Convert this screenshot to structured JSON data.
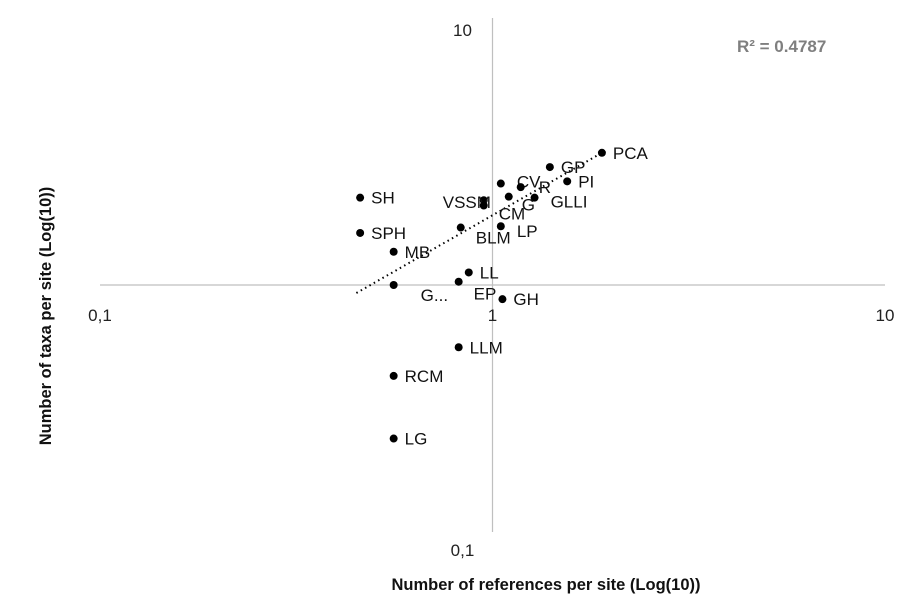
{
  "chart_data": {
    "type": "scatter",
    "title": "",
    "xlabel": "Number of references per site (Log(10))",
    "ylabel": "Number of taxa per site (Log(10))",
    "x_scale": "log",
    "y_scale": "log",
    "xlim": [
      0.1,
      10
    ],
    "ylim": [
      0.1,
      10
    ],
    "x_ticks": [
      "0,1",
      "1",
      "10"
    ],
    "y_ticks": [
      "10",
      "0,1"
    ],
    "grid": false,
    "trendline": {
      "style": "dotted",
      "x_range": [
        0.45,
        1.9
      ],
      "y_range": [
        0.93,
        3.3
      ]
    },
    "r_squared_label": "R² = 0.4787",
    "points": [
      {
        "label": "PCA",
        "x": 1.9,
        "y": 3.3
      },
      {
        "label": "GP",
        "x": 1.4,
        "y": 2.9
      },
      {
        "label": "PI",
        "x": 1.55,
        "y": 2.55
      },
      {
        "label": "CV",
        "x": 1.05,
        "y": 2.5
      },
      {
        "label": "R",
        "x": 1.18,
        "y": 2.42
      },
      {
        "label": "GLLI",
        "x": 1.28,
        "y": 2.2
      },
      {
        "label": "G",
        "x": 1.1,
        "y": 2.22
      },
      {
        "label": "VSSM",
        "x": 0.95,
        "y": 2.15
      },
      {
        "label": "CM",
        "x": 0.95,
        "y": 2.05
      },
      {
        "label": "SH",
        "x": 0.46,
        "y": 2.2
      },
      {
        "label": "LP",
        "x": 1.05,
        "y": 1.7
      },
      {
        "label": "BLM",
        "x": 0.83,
        "y": 1.68
      },
      {
        "label": "SPH",
        "x": 0.46,
        "y": 1.6
      },
      {
        "label": "MB",
        "x": 0.56,
        "y": 1.35
      },
      {
        "label": "LL",
        "x": 0.87,
        "y": 1.12
      },
      {
        "label": "EP",
        "x": 0.82,
        "y": 1.03
      },
      {
        "label": "G...",
        "x": 0.56,
        "y": 1.0
      },
      {
        "label": "GH",
        "x": 1.06,
        "y": 0.88
      },
      {
        "label": "LLM",
        "x": 0.82,
        "y": 0.57
      },
      {
        "label": "RCM",
        "x": 0.56,
        "y": 0.44
      },
      {
        "label": "LG",
        "x": 0.56,
        "y": 0.25
      }
    ]
  }
}
